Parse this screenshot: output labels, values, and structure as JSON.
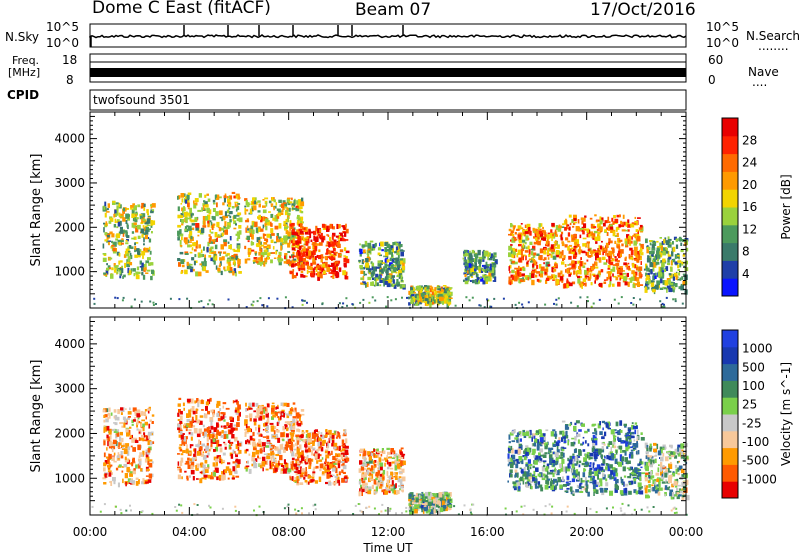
{
  "header": {
    "station": "Dome C East (fitACF)",
    "beam": "Beam 07",
    "date": "17/Oct/2016"
  },
  "panels": {
    "nsky_label": "N.Sky",
    "nsky_ticks": [
      "10^5",
      "10^0"
    ],
    "nsearch_label": "N.Search",
    "nsearch_dots": "........",
    "freq_label_1": "Freq.",
    "freq_label_2": "[MHz]",
    "freq_ticks": [
      "18",
      "8"
    ],
    "nave_label": "Nave",
    "nave_dots": "....",
    "nave_ticks": [
      "60",
      "0"
    ],
    "cpid_label": "CPID",
    "cpid_value": "twofsound 3501"
  },
  "colors": {
    "power": [
      "#0a14ff",
      "#1f3fa8",
      "#3a7a6a",
      "#4c9a5c",
      "#9ad23c",
      "#f2d400",
      "#ff9a00",
      "#ff6a00",
      "#ff2200",
      "#e80000"
    ],
    "velocity": [
      "#e80000",
      "#ff5a00",
      "#ff9a00",
      "#f7c89a",
      "#c8c8c8",
      "#7ad04a",
      "#3f8a5a",
      "#2e6a9a",
      "#1838b0",
      "#2040e0"
    ]
  },
  "chart_data": [
    {
      "type": "heatmap",
      "name": "power",
      "ylabel": "Slant Range [km]",
      "yticks": [
        "1000",
        "2000",
        "3000",
        "4000"
      ],
      "ylim": [
        180,
        4600
      ],
      "xlim": [
        0,
        24
      ],
      "xticks": [
        "00:00",
        "04:00",
        "08:00",
        "12:00",
        "16:00",
        "20:00",
        "00:00"
      ],
      "colorbar": {
        "label": "Power [dB]",
        "ticks": [
          "4",
          "8",
          "12",
          "16",
          "20",
          "24",
          "28"
        ],
        "range": [
          0,
          32
        ]
      },
      "patches": [
        {
          "t0": 0.5,
          "t1": 2.5,
          "r0": 900,
          "r1": 2600,
          "level": 0.45
        },
        {
          "t0": 3.5,
          "t1": 6.0,
          "r0": 1000,
          "r1": 2800,
          "level": 0.5
        },
        {
          "t0": 6.2,
          "t1": 8.5,
          "r0": 1200,
          "r1": 2700,
          "level": 0.55
        },
        {
          "t0": 8.0,
          "t1": 10.3,
          "r0": 900,
          "r1": 2100,
          "level": 0.85
        },
        {
          "t0": 10.8,
          "t1": 12.6,
          "r0": 700,
          "r1": 1700,
          "level": 0.35
        },
        {
          "t0": 12.8,
          "t1": 14.5,
          "r0": 300,
          "r1": 700,
          "level": 0.45
        },
        {
          "t0": 15.0,
          "t1": 16.3,
          "r0": 800,
          "r1": 1500,
          "level": 0.3
        },
        {
          "t0": 16.8,
          "t1": 19.0,
          "r0": 800,
          "r1": 2100,
          "level": 0.7
        },
        {
          "t0": 19.0,
          "t1": 22.2,
          "r0": 700,
          "r1": 2300,
          "level": 0.75
        },
        {
          "t0": 22.3,
          "t1": 24.0,
          "r0": 600,
          "r1": 1800,
          "level": 0.35
        }
      ]
    },
    {
      "type": "heatmap",
      "name": "velocity",
      "ylabel": "Slant Range [km]",
      "yticks": [
        "1000",
        "2000",
        "3000",
        "4000"
      ],
      "ylim": [
        180,
        4600
      ],
      "xlim": [
        0,
        24
      ],
      "xlabel": "Time UT",
      "xticks": [
        "00:00",
        "04:00",
        "08:00",
        "12:00",
        "16:00",
        "20:00",
        "00:00"
      ],
      "colorbar": {
        "label": "Velocity [m s^-1]",
        "ticks": [
          "1000",
          "500",
          "100",
          "25",
          "-25",
          "-100",
          "-500",
          "-1000"
        ]
      },
      "patches": [
        {
          "t0": 0.5,
          "t1": 2.5,
          "r0": 900,
          "r1": 2600,
          "level": 0.25
        },
        {
          "t0": 3.5,
          "t1": 6.0,
          "r0": 1000,
          "r1": 2800,
          "level": 0.2
        },
        {
          "t0": 6.2,
          "t1": 8.5,
          "r0": 1200,
          "r1": 2700,
          "level": 0.22
        },
        {
          "t0": 8.0,
          "t1": 10.3,
          "r0": 900,
          "r1": 2100,
          "level": 0.2
        },
        {
          "t0": 10.8,
          "t1": 12.6,
          "r0": 700,
          "r1": 1700,
          "level": 0.3
        },
        {
          "t0": 12.8,
          "t1": 14.5,
          "r0": 300,
          "r1": 700,
          "level": 0.55
        },
        {
          "t0": 16.8,
          "t1": 19.0,
          "r0": 800,
          "r1": 2100,
          "level": 0.7
        },
        {
          "t0": 19.0,
          "t1": 22.2,
          "r0": 700,
          "r1": 2300,
          "level": 0.72
        },
        {
          "t0": 22.3,
          "t1": 24.0,
          "r0": 600,
          "r1": 1800,
          "level": 0.5
        }
      ]
    }
  ]
}
